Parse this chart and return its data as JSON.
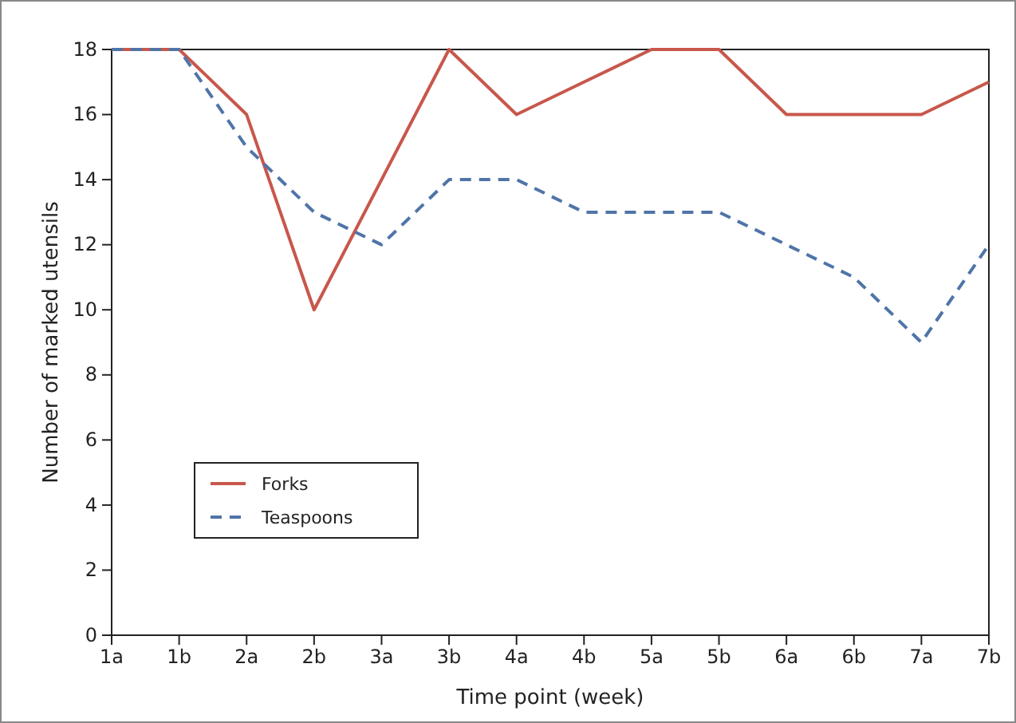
{
  "chart_data": {
    "type": "line",
    "xlabel": "Time point (week)",
    "ylabel": "Number of marked utensils",
    "categories": [
      "1a",
      "1b",
      "2a",
      "2b",
      "3a",
      "3b",
      "4a",
      "4b",
      "5a",
      "5b",
      "6a",
      "6b",
      "7a",
      "7b"
    ],
    "series": [
      {
        "name": "Forks",
        "color": "#c8574c",
        "line_style": "solid",
        "values": [
          18,
          18,
          16,
          10,
          14,
          18,
          16,
          17,
          18,
          18,
          16,
          16,
          16,
          17
        ]
      },
      {
        "name": "Teaspoons",
        "color": "#4f74a8",
        "line_style": "dashed",
        "values": [
          18,
          18,
          15,
          13,
          12,
          14,
          14,
          13,
          13,
          13,
          12,
          11,
          9,
          12
        ]
      }
    ],
    "ylim": [
      0,
      18
    ],
    "yticks": [
      0,
      2,
      4,
      6,
      8,
      10,
      12,
      14,
      16,
      18
    ],
    "grid": false,
    "legend": "left",
    "marker": "none"
  }
}
